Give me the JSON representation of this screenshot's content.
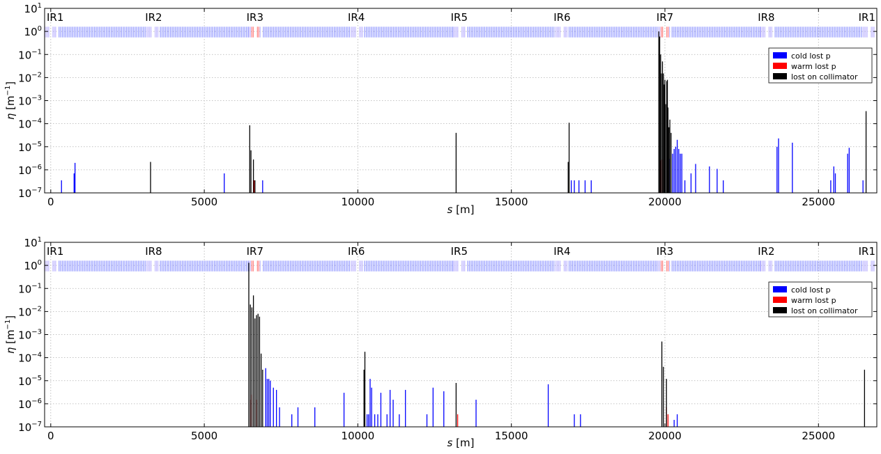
{
  "colors": {
    "cold": "#0000ff",
    "warm": "#ff0000",
    "collimator": "#000000",
    "magnet_band": "#9aa0ff"
  },
  "chart_data": [
    {
      "type": "bar",
      "title": "",
      "xlabel": "s",
      "xlabel_unit": "[m]",
      "ylabel": "η",
      "ylabel_unit": "[m",
      "ylabel_exp": "−1",
      "ylabel_close": "]",
      "xlim": [
        -200,
        26900
      ],
      "ylim": [
        1e-07,
        10
      ],
      "yscale": "log",
      "grid": true,
      "legend_position": "top-right",
      "x_ticks": [
        "0",
        "5000",
        "10000",
        "15000",
        "20000",
        "25000"
      ],
      "x_tick_values": [
        0,
        5000,
        10000,
        15000,
        20000,
        25000
      ],
      "y_ticks": [
        {
          "base": "10",
          "exp": "-7",
          "value": 1e-07
        },
        {
          "base": "10",
          "exp": "-6",
          "value": 1e-06
        },
        {
          "base": "10",
          "exp": "-5",
          "value": 1e-05
        },
        {
          "base": "10",
          "exp": "-4",
          "value": 0.0001
        },
        {
          "base": "10",
          "exp": "-3",
          "value": 0.001
        },
        {
          "base": "10",
          "exp": "-2",
          "value": 0.01
        },
        {
          "base": "10",
          "exp": "-1",
          "value": 0.1
        },
        {
          "base": "10",
          "exp": "0",
          "value": 1
        },
        {
          "base": "10",
          "exp": "1",
          "value": 10
        }
      ],
      "ir_labels": [
        {
          "label": "IR1",
          "s": 300
        },
        {
          "label": "IR2",
          "s": 3350
        },
        {
          "label": "IR3",
          "s": 6650
        },
        {
          "label": "IR4",
          "s": 9950
        },
        {
          "label": "IR5",
          "s": 13300
        },
        {
          "label": "IR6",
          "s": 16650
        },
        {
          "label": "IR7",
          "s": 20000
        },
        {
          "label": "IR8",
          "s": 23300
        },
        {
          "label": "IR1",
          "s": 26350
        }
      ],
      "legend": [
        {
          "label": "cold lost p",
          "color": "#0000ff"
        },
        {
          "label": "warm lost p",
          "color": "#ff0000"
        },
        {
          "label": "lost on collimator",
          "color": "#000000"
        }
      ],
      "series": [
        {
          "name": "cold lost p",
          "points": [
            [
              350,
              3.5e-07
            ],
            [
              760,
              7e-07
            ],
            [
              790,
              2e-06
            ],
            [
              5650,
              7e-07
            ],
            [
              6900,
              3.5e-07
            ],
            [
              16950,
              3.5e-07
            ],
            [
              17050,
              3.5e-07
            ],
            [
              17200,
              3.5e-07
            ],
            [
              17400,
              3.5e-07
            ],
            [
              17600,
              3.5e-07
            ],
            [
              20150,
              3e-06
            ],
            [
              20250,
              5e-06
            ],
            [
              20300,
              8e-06
            ],
            [
              20350,
              1e-05
            ],
            [
              20400,
              2e-05
            ],
            [
              20450,
              8e-06
            ],
            [
              20500,
              5e-06
            ],
            [
              20550,
              5e-06
            ],
            [
              20650,
              3.5e-07
            ],
            [
              20850,
              7e-07
            ],
            [
              21000,
              1.8e-06
            ],
            [
              21450,
              1.4e-06
            ],
            [
              21700,
              1.1e-06
            ],
            [
              21900,
              3.5e-07
            ],
            [
              23650,
              1e-05
            ],
            [
              23700,
              2.3e-05
            ],
            [
              24150,
              1.5e-05
            ],
            [
              25400,
              3.5e-07
            ],
            [
              25500,
              1.4e-06
            ],
            [
              25550,
              7e-07
            ],
            [
              25950,
              5e-06
            ],
            [
              26000,
              9e-06
            ],
            [
              26450,
              3.5e-07
            ]
          ]
        },
        {
          "name": "warm lost p",
          "points": [
            [
              6620,
              3.5e-07
            ],
            [
              19850,
              2.5e-06
            ],
            [
              19920,
              2.8e-06
            ],
            [
              20100,
              7e-07
            ]
          ]
        },
        {
          "name": "lost on collimator",
          "points": [
            [
              3250,
              2.2e-06
            ],
            [
              6480,
              8.5e-05
            ],
            [
              6520,
              7e-06
            ],
            [
              6600,
              2.8e-06
            ],
            [
              6650,
              3.5e-07
            ],
            [
              13200,
              4e-05
            ],
            [
              16850,
              2.2e-06
            ],
            [
              16880,
              0.00011
            ],
            [
              19800,
              1.0
            ],
            [
              19830,
              0.6
            ],
            [
              19860,
              0.1
            ],
            [
              19880,
              0.015
            ],
            [
              19920,
              0.05
            ],
            [
              19950,
              0.015
            ],
            [
              19980,
              0.005
            ],
            [
              20000,
              0.008
            ],
            [
              20020,
              0.0007
            ],
            [
              20060,
              0.007
            ],
            [
              20080,
              0.008
            ],
            [
              20100,
              0.0005
            ],
            [
              20130,
              7e-05
            ],
            [
              20160,
              0.00015
            ],
            [
              20200,
              4e-05
            ],
            [
              26550,
              0.00035
            ]
          ]
        }
      ]
    },
    {
      "type": "bar",
      "title": "",
      "xlabel": "s",
      "xlabel_unit": "[m]",
      "ylabel": "η",
      "ylabel_unit": "[m",
      "ylabel_exp": "−1",
      "ylabel_close": "]",
      "xlim": [
        -200,
        26900
      ],
      "ylim": [
        1e-07,
        10
      ],
      "yscale": "log",
      "grid": true,
      "legend_position": "top-right",
      "x_ticks": [
        "0",
        "5000",
        "10000",
        "15000",
        "20000",
        "25000"
      ],
      "x_tick_values": [
        0,
        5000,
        10000,
        15000,
        20000,
        25000
      ],
      "y_ticks": [
        {
          "base": "10",
          "exp": "-7",
          "value": 1e-07
        },
        {
          "base": "10",
          "exp": "-6",
          "value": 1e-06
        },
        {
          "base": "10",
          "exp": "-5",
          "value": 1e-05
        },
        {
          "base": "10",
          "exp": "-4",
          "value": 0.0001
        },
        {
          "base": "10",
          "exp": "-3",
          "value": 0.001
        },
        {
          "base": "10",
          "exp": "-2",
          "value": 0.01
        },
        {
          "base": "10",
          "exp": "-1",
          "value": 0.1
        },
        {
          "base": "10",
          "exp": "0",
          "value": 1
        },
        {
          "base": "10",
          "exp": "1",
          "value": 10
        }
      ],
      "ir_labels": [
        {
          "label": "IR1",
          "s": 300
        },
        {
          "label": "IR8",
          "s": 3350
        },
        {
          "label": "IR7",
          "s": 6650
        },
        {
          "label": "IR6",
          "s": 9950
        },
        {
          "label": "IR5",
          "s": 13300
        },
        {
          "label": "IR4",
          "s": 16650
        },
        {
          "label": "IR3",
          "s": 20000
        },
        {
          "label": "IR2",
          "s": 23300
        },
        {
          "label": "IR1",
          "s": 26350
        }
      ],
      "legend": [
        {
          "label": "cold lost p",
          "color": "#0000ff"
        },
        {
          "label": "warm lost p",
          "color": "#ff0000"
        },
        {
          "label": "lost on collimator",
          "color": "#000000"
        }
      ],
      "series": [
        {
          "name": "cold lost p",
          "points": [
            [
              7000,
              3.5e-05
            ],
            [
              7050,
              1.2e-05
            ],
            [
              7100,
              1.2e-05
            ],
            [
              7150,
              1e-05
            ],
            [
              7250,
              5e-06
            ],
            [
              7350,
              4e-06
            ],
            [
              7450,
              7e-07
            ],
            [
              7850,
              3.5e-07
            ],
            [
              8050,
              7e-07
            ],
            [
              8600,
              7e-07
            ],
            [
              9550,
              3e-06
            ],
            [
              10300,
              3.5e-07
            ],
            [
              10350,
              3.5e-07
            ],
            [
              10400,
              1.2e-05
            ],
            [
              10450,
              5e-06
            ],
            [
              10550,
              3.5e-07
            ],
            [
              10650,
              3.5e-07
            ],
            [
              10750,
              3e-06
            ],
            [
              10950,
              3.5e-07
            ],
            [
              11050,
              4e-06
            ],
            [
              11150,
              1.5e-06
            ],
            [
              11350,
              3.5e-07
            ],
            [
              11550,
              4e-06
            ],
            [
              12250,
              3.5e-07
            ],
            [
              12450,
              5e-06
            ],
            [
              12800,
              3.5e-06
            ],
            [
              13850,
              1.5e-06
            ],
            [
              16200,
              7e-06
            ],
            [
              17050,
              3.5e-07
            ],
            [
              17250,
              3.5e-07
            ],
            [
              20300,
              2e-07
            ],
            [
              20400,
              3.5e-07
            ]
          ]
        },
        {
          "name": "warm lost p",
          "points": [
            [
              6500,
              1.5e-06
            ],
            [
              6550,
              2.5e-06
            ],
            [
              6700,
              1.5e-06
            ],
            [
              13250,
              3.5e-07
            ],
            [
              20050,
              7e-07
            ],
            [
              20100,
              3.5e-07
            ]
          ]
        },
        {
          "name": "lost on collimator",
          "points": [
            [
              6450,
              1.3
            ],
            [
              6500,
              0.02
            ],
            [
              6550,
              0.015
            ],
            [
              6600,
              0.05
            ],
            [
              6650,
              0.005
            ],
            [
              6700,
              0.007
            ],
            [
              6750,
              0.008
            ],
            [
              6800,
              0.006
            ],
            [
              6850,
              0.00015
            ],
            [
              6900,
              3e-05
            ],
            [
              10200,
              3e-05
            ],
            [
              10230,
              0.00018
            ],
            [
              13200,
              8e-06
            ],
            [
              19900,
              0.0005
            ],
            [
              19950,
              4e-05
            ],
            [
              20050,
              1.2e-05
            ],
            [
              26500,
              3e-05
            ]
          ]
        }
      ]
    }
  ]
}
